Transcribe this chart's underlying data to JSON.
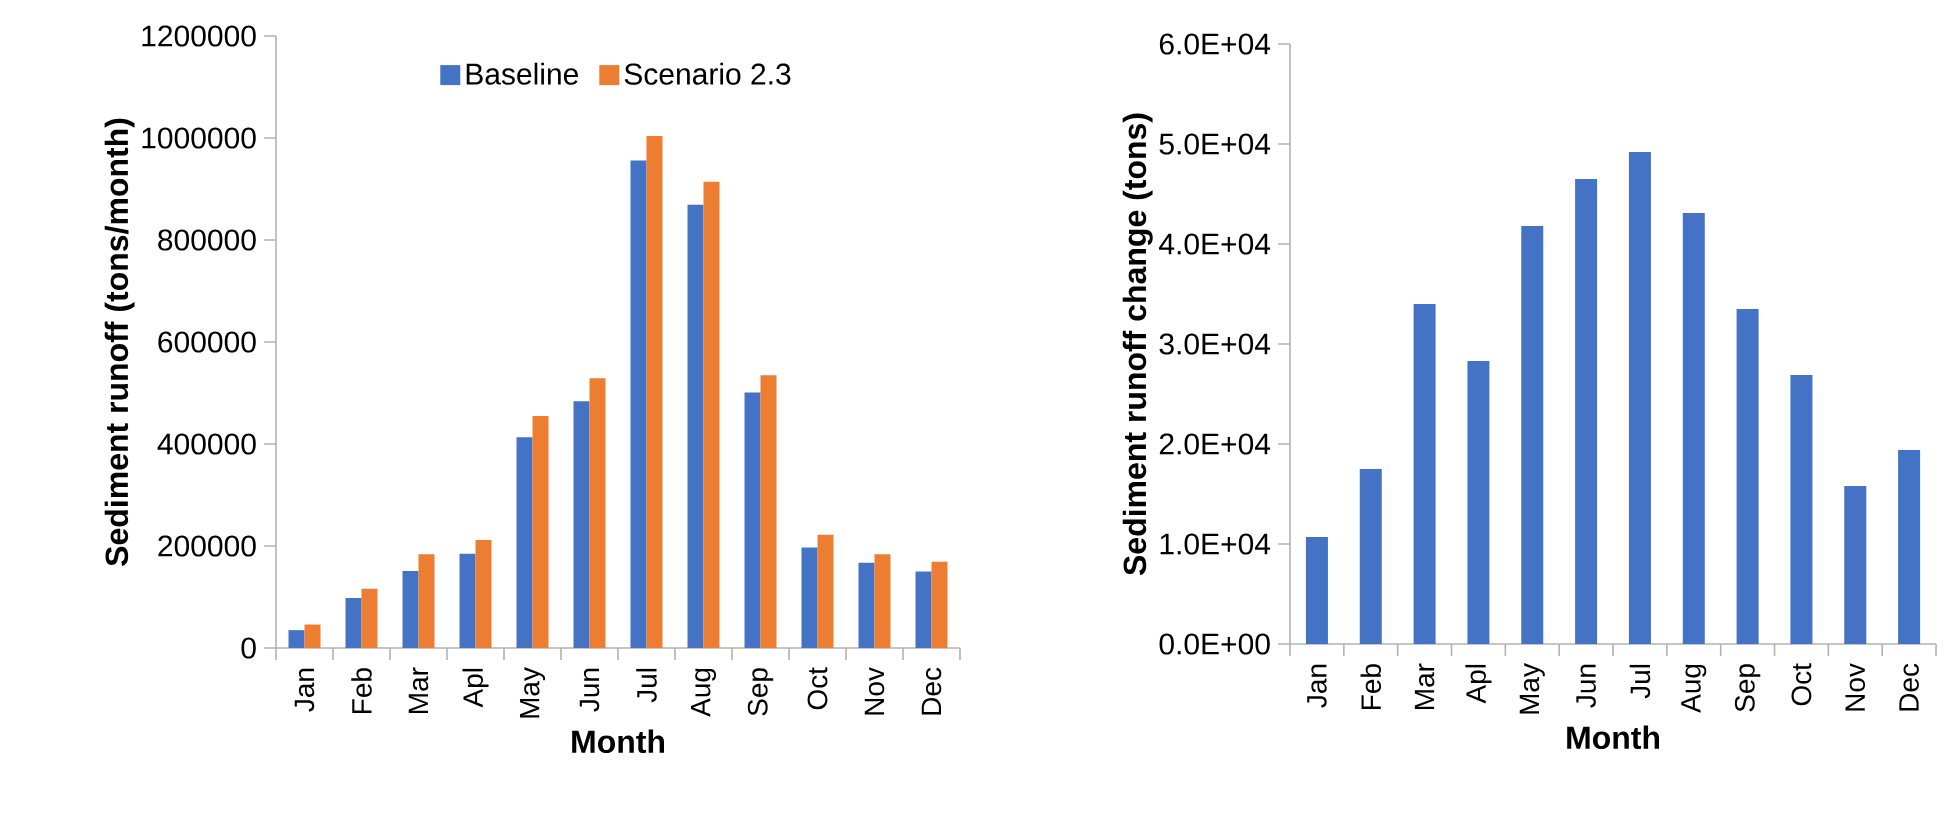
{
  "chart_data": [
    {
      "type": "bar",
      "xlabel": "Month",
      "ylabel": "Sediment runoff (tons/month)",
      "categories": [
        "Jan",
        "Feb",
        "Mar",
        "Apl",
        "May",
        "Jun",
        "Jul",
        "Aug",
        "Sep",
        "Oct",
        "Nov",
        "Dec"
      ],
      "series": [
        {
          "name": "Baseline",
          "color": "#4472c4",
          "values": [
            35000,
            98000,
            151000,
            185000,
            413000,
            484000,
            956000,
            869000,
            501000,
            197000,
            167000,
            150000
          ]
        },
        {
          "name": "Scenario 2.3",
          "color": "#ed7d31",
          "values": [
            46000,
            116000,
            184000,
            212000,
            455000,
            529000,
            1004000,
            914000,
            535000,
            222000,
            184000,
            169000
          ]
        }
      ],
      "ylim": [
        0,
        1200000
      ],
      "yticks": [
        0,
        200000,
        400000,
        600000,
        800000,
        1000000,
        1200000
      ],
      "legend": "top"
    },
    {
      "type": "bar",
      "xlabel": "Month",
      "ylabel": "Sediment runoff change (tons)",
      "categories": [
        "Jan",
        "Feb",
        "Mar",
        "Apl",
        "May",
        "Jun",
        "Jul",
        "Aug",
        "Sep",
        "Oct",
        "Nov",
        "Dec"
      ],
      "values": [
        10700,
        17500,
        34000,
        28300,
        41800,
        46500,
        49200,
        43100,
        33500,
        26900,
        15800,
        19400
      ],
      "color": "#4472c4",
      "ylim": [
        0,
        60000
      ],
      "yticks": [
        {
          "value": 0,
          "label": "0.0E+00"
        },
        {
          "value": 10000,
          "label": "1.0E+04"
        },
        {
          "value": 20000,
          "label": "2.0E+04"
        },
        {
          "value": 30000,
          "label": "3.0E+04"
        },
        {
          "value": 40000,
          "label": "4.0E+04"
        },
        {
          "value": 50000,
          "label": "5.0E+04"
        },
        {
          "value": 60000,
          "label": "6.0E+04"
        }
      ]
    }
  ]
}
